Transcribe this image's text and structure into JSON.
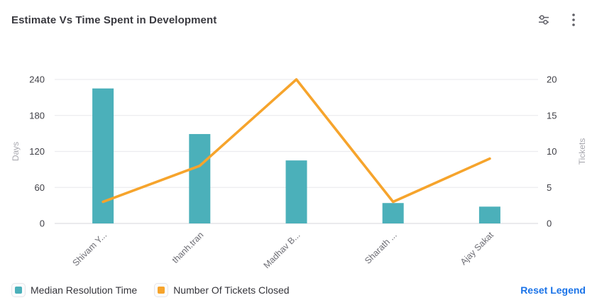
{
  "header": {
    "title": "Estimate Vs Time Spent in Development",
    "filter_icon": "tune-sliders",
    "menu_icon": "vertical-kebab"
  },
  "chart_data": {
    "type": "bar",
    "subtype": "combo-bar-line",
    "title": "Estimate Vs Time Spent in Development",
    "categories": [
      "Shivam Y...",
      "thanh.tran",
      "Madhav B...",
      "Sharath ...",
      "Ajay Sakat"
    ],
    "series": [
      {
        "name": "Median Resolution Time",
        "type": "bar",
        "axis": "left",
        "color": "#4BB0BA",
        "values": [
          225,
          149,
          105,
          34,
          28
        ]
      },
      {
        "name": "Number Of Tickets Closed",
        "type": "line",
        "axis": "right",
        "color": "#F6A42C",
        "values": [
          3,
          8,
          20,
          3,
          9
        ]
      }
    ],
    "y_left": {
      "label": "Days",
      "min": 0,
      "max": 240,
      "ticks": [
        0,
        60,
        120,
        180,
        240
      ]
    },
    "y_right": {
      "label": "Tickets",
      "min": 0,
      "max": 20,
      "ticks": [
        0,
        5,
        10,
        15,
        20
      ]
    },
    "grid": "horizontal",
    "legend_position": "bottom"
  },
  "footer": {
    "reset_label": "Reset Legend"
  }
}
